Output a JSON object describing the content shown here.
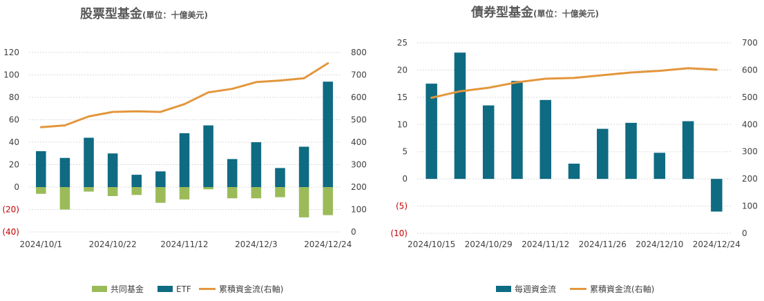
{
  "colors": {
    "mutual": "#9bbb59",
    "etf": "#0e6b82",
    "cumulative": "#e3963b",
    "negative_tick": "#c00000",
    "grid": "#d9d9d9",
    "text": "#404040",
    "title": "#595959"
  },
  "chart_data": [
    {
      "type": "bar",
      "title": "股票型基金",
      "title_unit": "(單位：十億美元)",
      "x_tick_labels": [
        "2024/10/1",
        "2024/10/22",
        "2024/11/12",
        "2024/12/3",
        "2024/12/24"
      ],
      "x_tick_index": [
        0,
        3,
        6,
        9,
        12
      ],
      "categories": [
        "2024/10/1",
        "2024/10/8",
        "2024/10/15",
        "2024/10/22",
        "2024/10/29",
        "2024/11/5",
        "2024/11/12",
        "2024/11/19",
        "2024/11/26",
        "2024/12/3",
        "2024/12/10",
        "2024/12/17",
        "2024/12/24"
      ],
      "left_axis": {
        "min": -40,
        "max": 120,
        "ticks": [
          120,
          100,
          80,
          60,
          40,
          20,
          0,
          -20,
          -40
        ],
        "labels": [
          "120",
          "100",
          "80",
          "60",
          "40",
          "20",
          "0",
          "(20)",
          "(40)"
        ]
      },
      "right_axis": {
        "min": 0,
        "max": 800,
        "ticks": [
          800,
          700,
          600,
          500,
          400,
          300,
          200,
          100,
          0
        ],
        "labels": [
          "800",
          "700",
          "600",
          "500",
          "400",
          "300",
          "200",
          "100",
          "0"
        ]
      },
      "grid": true,
      "legend_position": "bottom",
      "series": [
        {
          "name": "共同基金",
          "type": "bar",
          "axis": "left",
          "values": [
            -6,
            -20,
            -4,
            -8,
            -7,
            -14,
            -11,
            -2,
            -10,
            -10,
            -9,
            -27,
            -25
          ]
        },
        {
          "name": "ETF",
          "type": "bar",
          "axis": "left",
          "values": [
            32,
            26,
            44,
            30,
            11,
            14,
            48,
            55,
            25,
            40,
            17,
            36,
            94
          ]
        },
        {
          "name": "累積資金流(右軸)",
          "type": "line",
          "axis": "right",
          "values": [
            467,
            475,
            515,
            535,
            538,
            535,
            570,
            622,
            638,
            668,
            675,
            685,
            752
          ]
        }
      ]
    },
    {
      "type": "bar",
      "title": "債券型基金",
      "title_unit": "(單位：十億美元)",
      "x_tick_labels": [
        "2024/10/15",
        "2024/10/29",
        "2024/11/12",
        "2024/11/26",
        "2024/12/10",
        "2024/12/24"
      ],
      "x_tick_index": [
        0,
        2,
        4,
        6,
        8,
        10
      ],
      "categories": [
        "2024/10/15",
        "2024/10/22",
        "2024/10/29",
        "2024/11/5",
        "2024/11/12",
        "2024/11/19",
        "2024/11/26",
        "2024/12/3",
        "2024/12/10",
        "2024/12/17",
        "2024/12/24"
      ],
      "left_axis": {
        "min": -10,
        "max": 25,
        "ticks": [
          25,
          20,
          15,
          10,
          5,
          0,
          -5,
          -10
        ],
        "labels": [
          "25",
          "20",
          "15",
          "10",
          "5",
          "0",
          "(5)",
          "(10)"
        ]
      },
      "right_axis": {
        "min": 0,
        "max": 700,
        "ticks": [
          700,
          600,
          500,
          400,
          300,
          200,
          100,
          0
        ],
        "labels": [
          "700",
          "600",
          "500",
          "400",
          "300",
          "200",
          "100",
          "0"
        ]
      },
      "grid": true,
      "legend_position": "bottom",
      "series": [
        {
          "name": "每週資金流",
          "type": "bar",
          "axis": "left",
          "values": [
            17.5,
            23.2,
            13.5,
            18.0,
            14.5,
            2.8,
            9.2,
            10.3,
            4.8,
            10.6,
            -6.0
          ]
        },
        {
          "name": "累積資金流(右軸)",
          "type": "line",
          "axis": "right",
          "values": [
            498,
            522,
            535,
            555,
            568,
            571,
            581,
            591,
            597,
            607,
            601
          ]
        }
      ]
    }
  ]
}
